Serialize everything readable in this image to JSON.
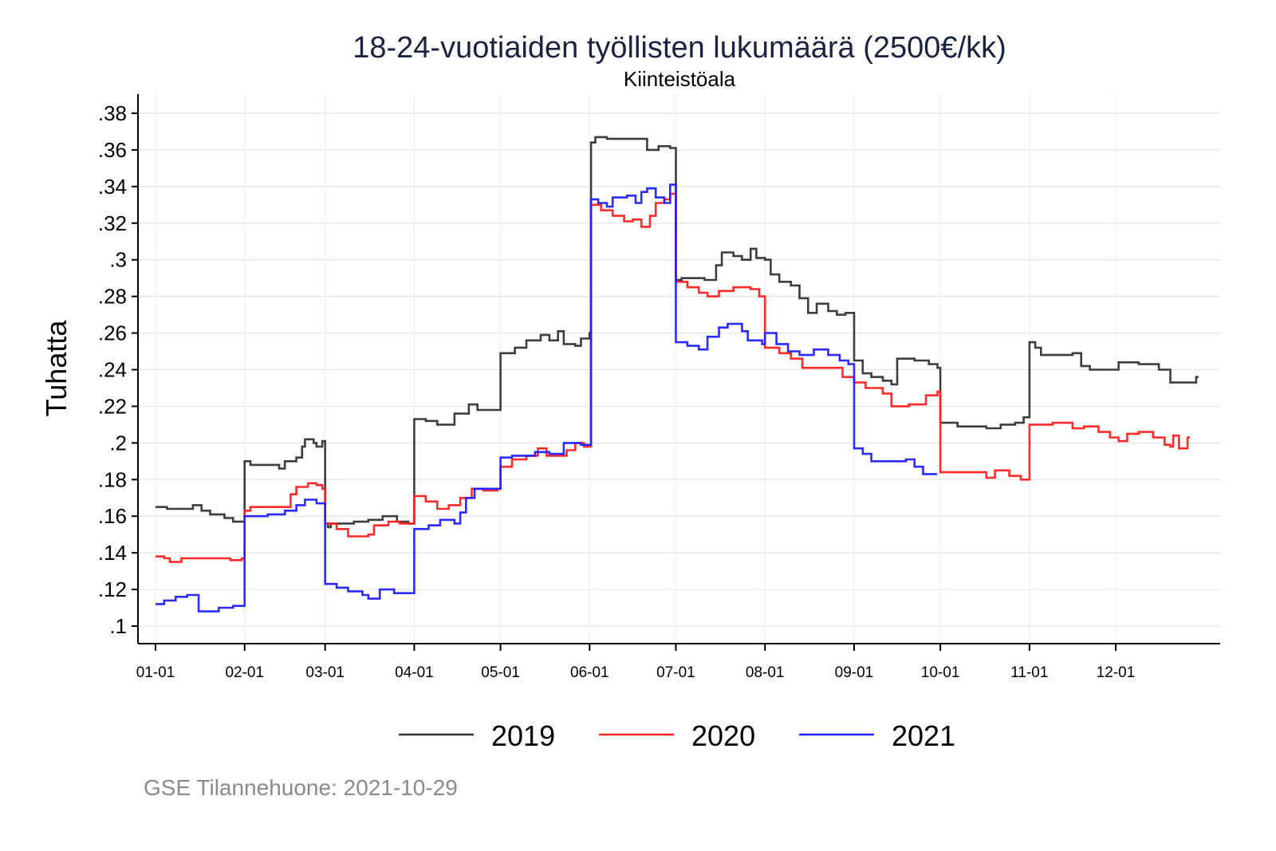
{
  "chart_data": {
    "type": "line",
    "step": true,
    "title": "18-24-vuotiaiden työllisten lukumäärä (2500€/kk)",
    "subtitle": "Kiinteistöala",
    "xlabel": "",
    "ylabel": "Tuhatta",
    "x_unit": "day of year",
    "xlim": [
      -5,
      371
    ],
    "ylim": [
      0.09,
      0.39
    ],
    "grid": true,
    "legend_position": "bottom",
    "y_ticks": [
      {
        "value": 0.1,
        "label": ".1"
      },
      {
        "value": 0.12,
        "label": ".12"
      },
      {
        "value": 0.14,
        "label": ".14"
      },
      {
        "value": 0.16,
        "label": ".16"
      },
      {
        "value": 0.18,
        "label": ".18"
      },
      {
        "value": 0.2,
        "label": ".2"
      },
      {
        "value": 0.22,
        "label": ".22"
      },
      {
        "value": 0.24,
        "label": ".24"
      },
      {
        "value": 0.26,
        "label": ".26"
      },
      {
        "value": 0.28,
        "label": ".28"
      },
      {
        "value": 0.3,
        "label": ".3"
      },
      {
        "value": 0.32,
        "label": ".32"
      },
      {
        "value": 0.34,
        "label": ".34"
      },
      {
        "value": 0.36,
        "label": ".36"
      },
      {
        "value": 0.38,
        "label": ".38"
      }
    ],
    "x_ticks": [
      {
        "value": 1,
        "label": "01-01"
      },
      {
        "value": 32,
        "label": "02-01"
      },
      {
        "value": 60,
        "label": "03-01"
      },
      {
        "value": 91,
        "label": "04-01"
      },
      {
        "value": 121,
        "label": "05-01"
      },
      {
        "value": 152,
        "label": "06-01"
      },
      {
        "value": 182,
        "label": "07-01"
      },
      {
        "value": 213,
        "label": "08-01"
      },
      {
        "value": 244,
        "label": "09-01"
      },
      {
        "value": 274,
        "label": "10-01"
      },
      {
        "value": 305,
        "label": "11-01"
      },
      {
        "value": 335,
        "label": "12-01"
      }
    ],
    "series": [
      {
        "name": "2019",
        "color": "#333333",
        "points": [
          [
            1,
            0.165
          ],
          [
            5,
            0.164
          ],
          [
            14,
            0.166
          ],
          [
            17,
            0.163
          ],
          [
            20,
            0.161
          ],
          [
            25,
            0.159
          ],
          [
            28,
            0.157
          ],
          [
            30,
            0.157
          ],
          [
            32,
            0.19
          ],
          [
            34,
            0.188
          ],
          [
            40,
            0.188
          ],
          [
            44,
            0.186
          ],
          [
            46,
            0.19
          ],
          [
            50,
            0.192
          ],
          [
            52,
            0.198
          ],
          [
            53,
            0.202
          ],
          [
            56,
            0.2
          ],
          [
            57,
            0.198
          ],
          [
            59,
            0.201
          ],
          [
            60,
            0.156
          ],
          [
            61,
            0.154
          ],
          [
            62,
            0.156
          ],
          [
            70,
            0.157
          ],
          [
            75,
            0.158
          ],
          [
            80,
            0.16
          ],
          [
            85,
            0.157
          ],
          [
            89,
            0.156
          ],
          [
            91,
            0.213
          ],
          [
            95,
            0.212
          ],
          [
            99,
            0.21
          ],
          [
            105,
            0.216
          ],
          [
            110,
            0.221
          ],
          [
            113,
            0.218
          ],
          [
            120,
            0.218
          ],
          [
            121,
            0.249
          ],
          [
            126,
            0.252
          ],
          [
            130,
            0.256
          ],
          [
            135,
            0.259
          ],
          [
            138,
            0.256
          ],
          [
            141,
            0.261
          ],
          [
            143,
            0.254
          ],
          [
            147,
            0.253
          ],
          [
            149,
            0.257
          ],
          [
            152,
            0.26
          ],
          [
            152.5,
            0.364
          ],
          [
            154,
            0.367
          ],
          [
            158,
            0.366
          ],
          [
            170,
            0.366
          ],
          [
            172,
            0.36
          ],
          [
            176,
            0.362
          ],
          [
            180,
            0.361
          ],
          [
            182,
            0.289
          ],
          [
            184,
            0.29
          ],
          [
            188,
            0.29
          ],
          [
            192,
            0.289
          ],
          [
            196,
            0.297
          ],
          [
            198,
            0.304
          ],
          [
            202,
            0.302
          ],
          [
            205,
            0.3
          ],
          [
            208,
            0.306
          ],
          [
            210,
            0.301
          ],
          [
            213,
            0.3
          ],
          [
            215,
            0.292
          ],
          [
            218,
            0.288
          ],
          [
            222,
            0.286
          ],
          [
            225,
            0.279
          ],
          [
            228,
            0.271
          ],
          [
            231,
            0.276
          ],
          [
            235,
            0.272
          ],
          [
            238,
            0.27
          ],
          [
            241,
            0.271
          ],
          [
            244,
            0.245
          ],
          [
            247,
            0.238
          ],
          [
            250,
            0.236
          ],
          [
            254,
            0.234
          ],
          [
            257,
            0.232
          ],
          [
            259,
            0.246
          ],
          [
            265,
            0.245
          ],
          [
            270,
            0.243
          ],
          [
            273,
            0.241
          ],
          [
            274,
            0.211
          ],
          [
            280,
            0.209
          ],
          [
            290,
            0.208
          ],
          [
            295,
            0.21
          ],
          [
            300,
            0.211
          ],
          [
            303,
            0.214
          ],
          [
            305,
            0.255
          ],
          [
            307,
            0.252
          ],
          [
            309,
            0.248
          ],
          [
            316,
            0.248
          ],
          [
            320,
            0.249
          ],
          [
            323,
            0.242
          ],
          [
            326,
            0.24
          ],
          [
            333,
            0.24
          ],
          [
            336,
            0.244
          ],
          [
            343,
            0.243
          ],
          [
            350,
            0.24
          ],
          [
            354,
            0.233
          ],
          [
            360,
            0.233
          ],
          [
            363,
            0.236
          ]
        ]
      },
      {
        "name": "2020",
        "color": "#ff2020",
        "points": [
          [
            1,
            0.138
          ],
          [
            4,
            0.137
          ],
          [
            6,
            0.135
          ],
          [
            10,
            0.137
          ],
          [
            20,
            0.137
          ],
          [
            27,
            0.136
          ],
          [
            31,
            0.137
          ],
          [
            32,
            0.163
          ],
          [
            34,
            0.165
          ],
          [
            46,
            0.165
          ],
          [
            48,
            0.172
          ],
          [
            50,
            0.176
          ],
          [
            54,
            0.178
          ],
          [
            57,
            0.177
          ],
          [
            59,
            0.175
          ],
          [
            60,
            0.156
          ],
          [
            64,
            0.153
          ],
          [
            68,
            0.149
          ],
          [
            75,
            0.15
          ],
          [
            77,
            0.155
          ],
          [
            82,
            0.157
          ],
          [
            86,
            0.156
          ],
          [
            90,
            0.156
          ],
          [
            91,
            0.171
          ],
          [
            95,
            0.168
          ],
          [
            99,
            0.164
          ],
          [
            103,
            0.166
          ],
          [
            107,
            0.17
          ],
          [
            111,
            0.175
          ],
          [
            115,
            0.174
          ],
          [
            120,
            0.175
          ],
          [
            121,
            0.187
          ],
          [
            125,
            0.191
          ],
          [
            130,
            0.193
          ],
          [
            134,
            0.197
          ],
          [
            137,
            0.193
          ],
          [
            144,
            0.196
          ],
          [
            147,
            0.2
          ],
          [
            150,
            0.198
          ],
          [
            152.5,
            0.33
          ],
          [
            156,
            0.327
          ],
          [
            160,
            0.324
          ],
          [
            164,
            0.321
          ],
          [
            167,
            0.322
          ],
          [
            170,
            0.318
          ],
          [
            173,
            0.324
          ],
          [
            175,
            0.331
          ],
          [
            178,
            0.333
          ],
          [
            180,
            0.336
          ],
          [
            182,
            0.288
          ],
          [
            186,
            0.285
          ],
          [
            190,
            0.282
          ],
          [
            193,
            0.28
          ],
          [
            197,
            0.283
          ],
          [
            202,
            0.285
          ],
          [
            208,
            0.284
          ],
          [
            211,
            0.28
          ],
          [
            213,
            0.252
          ],
          [
            218,
            0.249
          ],
          [
            222,
            0.246
          ],
          [
            226,
            0.241
          ],
          [
            235,
            0.241
          ],
          [
            240,
            0.236
          ],
          [
            244,
            0.233
          ],
          [
            248,
            0.23
          ],
          [
            254,
            0.227
          ],
          [
            257,
            0.22
          ],
          [
            263,
            0.221
          ],
          [
            269,
            0.226
          ],
          [
            273,
            0.228
          ],
          [
            274,
            0.184
          ],
          [
            285,
            0.184
          ],
          [
            290,
            0.181
          ],
          [
            293,
            0.185
          ],
          [
            298,
            0.182
          ],
          [
            302,
            0.18
          ],
          [
            305,
            0.21
          ],
          [
            313,
            0.211
          ],
          [
            320,
            0.208
          ],
          [
            324,
            0.209
          ],
          [
            329,
            0.206
          ],
          [
            333,
            0.203
          ],
          [
            336,
            0.201
          ],
          [
            339,
            0.205
          ],
          [
            343,
            0.206
          ],
          [
            348,
            0.203
          ],
          [
            352,
            0.199
          ],
          [
            354,
            0.198
          ],
          [
            355,
            0.204
          ],
          [
            357,
            0.197
          ],
          [
            360,
            0.203
          ]
        ]
      },
      {
        "name": "2021",
        "color": "#2020ff",
        "points": [
          [
            1,
            0.112
          ],
          [
            4,
            0.114
          ],
          [
            8,
            0.116
          ],
          [
            12,
            0.117
          ],
          [
            16,
            0.108
          ],
          [
            23,
            0.11
          ],
          [
            28,
            0.111
          ],
          [
            32,
            0.16
          ],
          [
            40,
            0.161
          ],
          [
            46,
            0.163
          ],
          [
            50,
            0.166
          ],
          [
            53,
            0.169
          ],
          [
            57,
            0.167
          ],
          [
            60,
            0.123
          ],
          [
            64,
            0.121
          ],
          [
            68,
            0.119
          ],
          [
            73,
            0.117
          ],
          [
            75,
            0.115
          ],
          [
            79,
            0.12
          ],
          [
            84,
            0.118
          ],
          [
            91,
            0.153
          ],
          [
            96,
            0.155
          ],
          [
            100,
            0.158
          ],
          [
            105,
            0.156
          ],
          [
            107,
            0.162
          ],
          [
            109,
            0.17
          ],
          [
            112,
            0.175
          ],
          [
            118,
            0.175
          ],
          [
            121,
            0.192
          ],
          [
            125,
            0.193
          ],
          [
            133,
            0.195
          ],
          [
            138,
            0.194
          ],
          [
            143,
            0.2
          ],
          [
            149,
            0.199
          ],
          [
            152.5,
            0.333
          ],
          [
            155,
            0.331
          ],
          [
            158,
            0.329
          ],
          [
            160,
            0.334
          ],
          [
            165,
            0.335
          ],
          [
            168,
            0.331
          ],
          [
            170,
            0.337
          ],
          [
            172,
            0.339
          ],
          [
            175,
            0.334
          ],
          [
            178,
            0.331
          ],
          [
            180,
            0.341
          ],
          [
            182,
            0.255
          ],
          [
            186,
            0.253
          ],
          [
            190,
            0.251
          ],
          [
            193,
            0.258
          ],
          [
            197,
            0.263
          ],
          [
            200,
            0.265
          ],
          [
            205,
            0.261
          ],
          [
            207,
            0.256
          ],
          [
            212,
            0.254
          ],
          [
            213,
            0.26
          ],
          [
            217,
            0.254
          ],
          [
            221,
            0.25
          ],
          [
            225,
            0.248
          ],
          [
            230,
            0.251
          ],
          [
            235,
            0.248
          ],
          [
            239,
            0.245
          ],
          [
            242,
            0.243
          ],
          [
            244,
            0.197
          ],
          [
            247,
            0.194
          ],
          [
            250,
            0.19
          ],
          [
            257,
            0.19
          ],
          [
            262,
            0.191
          ],
          [
            265,
            0.187
          ],
          [
            268,
            0.183
          ],
          [
            272,
            0.183
          ]
        ]
      }
    ]
  },
  "footer": "GSE Tilannehuone: 2021-10-29"
}
